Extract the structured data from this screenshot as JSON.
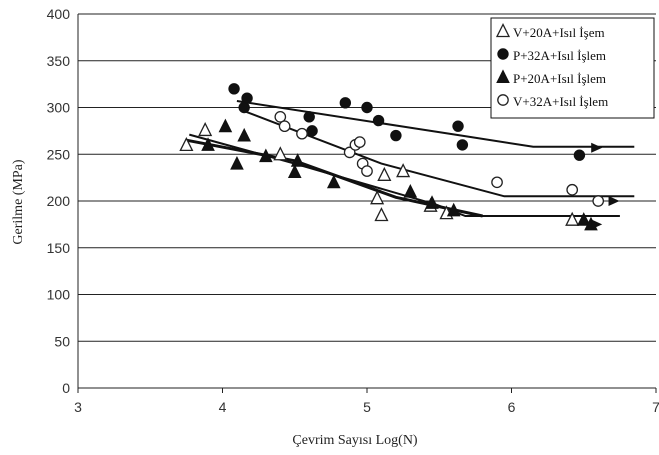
{
  "chart_data": {
    "type": "scatter",
    "title": "",
    "xlabel": "Çevrim Sayısı Log(N)",
    "ylabel": "Gerilme (MPa)",
    "xlim": [
      3,
      7
    ],
    "ylim": [
      0,
      400
    ],
    "x_ticks": [
      "3",
      "4",
      "5",
      "6",
      "7"
    ],
    "y_ticks": [
      "0",
      "50",
      "100",
      "150",
      "200",
      "250",
      "300",
      "350",
      "400"
    ],
    "grid": "horizontal",
    "legend_position": "top-right",
    "series": [
      {
        "name": "V+20A+Isıl İşem",
        "marker": "open-triangle",
        "color": "#222222",
        "points": [
          [
            3.75,
            260
          ],
          [
            3.88,
            276
          ],
          [
            4.4,
            250
          ],
          [
            5.07,
            203
          ],
          [
            5.1,
            185
          ],
          [
            5.12,
            228
          ],
          [
            5.25,
            232
          ],
          [
            5.44,
            195
          ],
          [
            5.55,
            187
          ],
          [
            6.42,
            180
          ]
        ],
        "trend": [
          [
            3.77,
            271
          ],
          [
            4.5,
            240
          ],
          [
            5.48,
            196
          ],
          [
            5.68,
            184
          ],
          [
            6.75,
            184
          ]
        ]
      },
      {
        "name": "P+32A+Isıl İşlem",
        "marker": "filled-circle",
        "color": "#111111",
        "points": [
          [
            4.08,
            320
          ],
          [
            4.17,
            310
          ],
          [
            4.15,
            300
          ],
          [
            4.6,
            290
          ],
          [
            4.62,
            275
          ],
          [
            4.85,
            305
          ],
          [
            5.0,
            300
          ],
          [
            5.08,
            286
          ],
          [
            5.2,
            270
          ],
          [
            5.63,
            280
          ],
          [
            5.66,
            260
          ],
          [
            6.47,
            249
          ]
        ],
        "trend": [
          [
            4.1,
            307
          ],
          [
            5.65,
            270
          ],
          [
            6.15,
            258
          ],
          [
            6.85,
            258
          ]
        ]
      },
      {
        "name": "P+20A+Isıl İşlem",
        "marker": "filled-triangle",
        "color": "#111111",
        "points": [
          [
            3.9,
            260
          ],
          [
            4.02,
            280
          ],
          [
            4.1,
            240
          ],
          [
            4.15,
            270
          ],
          [
            4.3,
            248
          ],
          [
            4.5,
            231
          ],
          [
            4.52,
            243
          ],
          [
            4.77,
            220
          ],
          [
            5.3,
            210
          ],
          [
            5.45,
            198
          ],
          [
            5.6,
            190
          ],
          [
            6.5,
            180
          ],
          [
            6.55,
            175
          ]
        ],
        "trend": [
          [
            3.75,
            265
          ],
          [
            4.5,
            243
          ],
          [
            5.2,
            204
          ],
          [
            5.8,
            184
          ]
        ]
      },
      {
        "name": "V+32A+Isıl İşlem",
        "marker": "open-circle",
        "color": "#222222",
        "points": [
          [
            4.4,
            290
          ],
          [
            4.43,
            280
          ],
          [
            4.55,
            272
          ],
          [
            4.88,
            252
          ],
          [
            4.92,
            260
          ],
          [
            4.95,
            263
          ],
          [
            4.97,
            240
          ],
          [
            5.0,
            232
          ],
          [
            5.9,
            220
          ],
          [
            6.42,
            212
          ],
          [
            6.6,
            200
          ]
        ],
        "trend": [
          [
            4.12,
            298
          ],
          [
            5.1,
            240
          ],
          [
            5.95,
            205
          ],
          [
            6.85,
            205
          ]
        ]
      }
    ],
    "annotations": [
      {
        "type": "arrow",
        "x": 6.6,
        "y": 257
      },
      {
        "type": "arrow",
        "x": 6.72,
        "y": 200
      },
      {
        "type": "arrow",
        "x": 6.6,
        "y": 175
      }
    ]
  }
}
